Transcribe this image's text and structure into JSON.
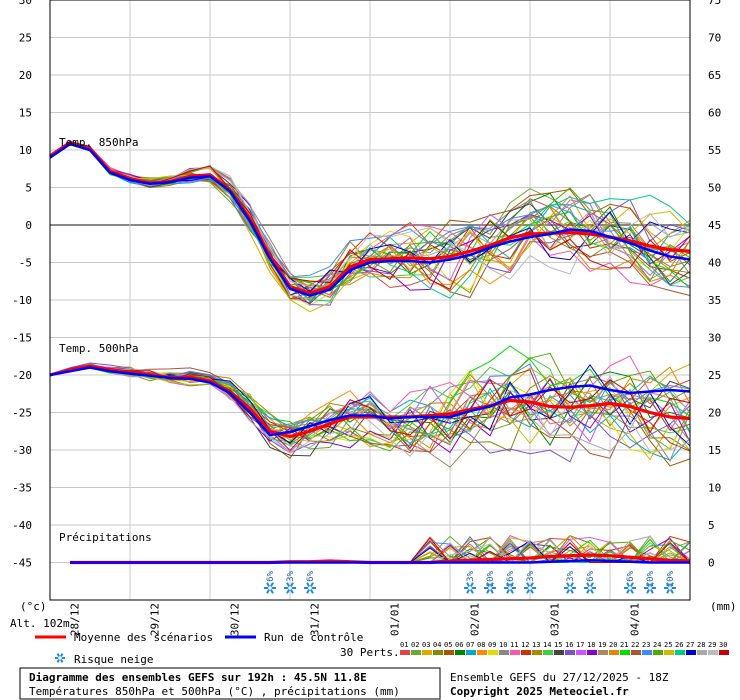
{
  "chart_data": {
    "type": "line",
    "x_dates": [
      "28/12",
      "29/12",
      "30/12",
      "31/12",
      "01/01",
      "02/01",
      "03/01",
      "04/01"
    ],
    "x_range_hours": [
      0,
      192
    ],
    "left_axis": {
      "unit_label": "(°c)",
      "ylim": [
        -50,
        30
      ],
      "ticks": [
        30,
        25,
        20,
        15,
        10,
        5,
        0,
        -5,
        -10,
        -15,
        -20,
        -25,
        -30,
        -35,
        -40,
        -45
      ]
    },
    "right_axis": {
      "unit_label": "(mm)",
      "ylim": [
        -5,
        75
      ],
      "ticks": [
        75,
        70,
        65,
        60,
        55,
        50,
        45,
        40,
        35,
        30,
        25,
        20,
        15,
        10,
        5,
        0
      ]
    },
    "altitude_label": "Alt. 102m",
    "panels": [
      {
        "label": "Temp. 850hPa"
      },
      {
        "label": "Temp. 500hPa"
      },
      {
        "label": "Précipitations"
      }
    ],
    "series": [
      {
        "name": "Moyenne des scénarios",
        "color": "#ff0000",
        "panel": "t850",
        "x": [
          0,
          6,
          12,
          18,
          24,
          30,
          36,
          42,
          48,
          54,
          60,
          66,
          72,
          78,
          84,
          90,
          96,
          102,
          108,
          114,
          120,
          126,
          132,
          138,
          144,
          150,
          156,
          162,
          168,
          174,
          180,
          186,
          192
        ],
        "y": [
          9.2,
          11,
          10.2,
          7.2,
          6.2,
          5.6,
          5.8,
          6.5,
          6.7,
          4.7,
          0.8,
          -4.2,
          -8.2,
          -9.1,
          -8.2,
          -5.6,
          -4.6,
          -4.5,
          -4.4,
          -4.5,
          -4.2,
          -3.5,
          -2.7,
          -1.7,
          -1.2,
          -1.1,
          -1.0,
          -1.2,
          -1.6,
          -2.1,
          -2.8,
          -3.3,
          -3.5
        ]
      },
      {
        "name": "Run de contrôle",
        "color": "#0000ff",
        "panel": "t850",
        "x": [
          0,
          6,
          12,
          18,
          24,
          30,
          36,
          42,
          48,
          54,
          60,
          66,
          72,
          78,
          84,
          90,
          96,
          102,
          108,
          114,
          120,
          126,
          132,
          138,
          144,
          150,
          156,
          162,
          168,
          174,
          180,
          186,
          192
        ],
        "y": [
          9.0,
          10.8,
          10.0,
          7.0,
          6.0,
          5.5,
          5.7,
          6.3,
          6.5,
          4.5,
          0.5,
          -4.5,
          -8.5,
          -9.4,
          -8.6,
          -6.0,
          -5.0,
          -4.8,
          -4.8,
          -5.0,
          -4.6,
          -4.0,
          -3.0,
          -2.2,
          -1.6,
          -1.2,
          -0.6,
          -0.8,
          -1.6,
          -2.4,
          -3.4,
          -4.2,
          -4.6
        ]
      },
      {
        "name": "Moyenne des scénarios",
        "color": "#ff0000",
        "panel": "t500",
        "x": [
          0,
          6,
          12,
          18,
          24,
          30,
          36,
          42,
          48,
          54,
          60,
          66,
          72,
          78,
          84,
          90,
          96,
          102,
          108,
          114,
          120,
          126,
          132,
          138,
          144,
          150,
          156,
          162,
          168,
          174,
          180,
          186,
          192
        ],
        "y": [
          -20,
          -19.3,
          -18.8,
          -19.3,
          -19.6,
          -20,
          -20.3,
          -20.3,
          -20.8,
          -22.2,
          -24.5,
          -27.5,
          -28.2,
          -27.5,
          -26.5,
          -25.6,
          -25.6,
          -25.6,
          -25.6,
          -25.4,
          -25.2,
          -24.6,
          -24.1,
          -23.4,
          -23.6,
          -24.2,
          -24.3,
          -24.1,
          -23.8,
          -24.2,
          -25.0,
          -25.6,
          -25.8
        ]
      },
      {
        "name": "Run de contrôle",
        "color": "#0000ff",
        "panel": "t500",
        "x": [
          0,
          6,
          12,
          18,
          24,
          30,
          36,
          42,
          48,
          54,
          60,
          66,
          72,
          78,
          84,
          90,
          96,
          102,
          108,
          114,
          120,
          126,
          132,
          138,
          144,
          150,
          156,
          162,
          168,
          174,
          180,
          186,
          192
        ],
        "y": [
          -20,
          -19.5,
          -19.0,
          -19.5,
          -19.8,
          -20.1,
          -20.4,
          -20.5,
          -21.0,
          -22.4,
          -25.0,
          -28.0,
          -27.6,
          -26.8,
          -26.0,
          -25.4,
          -25.4,
          -25.8,
          -25.6,
          -25.6,
          -25.6,
          -24.8,
          -24.2,
          -23.0,
          -22.6,
          -22.0,
          -21.6,
          -21.4,
          -22.0,
          -22.4,
          -22.2,
          -22.0,
          -22.2
        ]
      },
      {
        "name": "Moyenne des scénarios",
        "color": "#ff0000",
        "panel": "precip",
        "x": [
          6,
          48,
          54,
          60,
          66,
          72,
          78,
          84,
          90,
          96,
          102,
          108,
          114,
          120,
          126,
          132,
          138,
          144,
          150,
          156,
          162,
          168,
          174,
          180,
          186,
          192
        ],
        "y": [
          0,
          0,
          0,
          0,
          0,
          0.1,
          0.1,
          0.2,
          0.1,
          0,
          0,
          0,
          0,
          0.2,
          0.3,
          0.4,
          0.5,
          0.6,
          0.8,
          0.9,
          1.0,
          0.9,
          0.7,
          0.5,
          0.3,
          0.2
        ]
      },
      {
        "name": "Run de contrôle",
        "color": "#0000ff",
        "panel": "precip",
        "x": [
          6,
          48,
          54,
          60,
          66,
          72,
          78,
          84,
          90,
          96,
          102,
          108,
          114,
          120,
          126,
          132,
          138,
          144,
          150,
          156,
          162,
          168,
          174,
          180,
          186,
          192
        ],
        "y": [
          0,
          0,
          0,
          0,
          0,
          0,
          0,
          0,
          0,
          0,
          0,
          0,
          0,
          0,
          0,
          0,
          0,
          0,
          0.1,
          0.2,
          0.3,
          0.2,
          0.1,
          0,
          0,
          0
        ]
      }
    ],
    "snow_risk": [
      {
        "hour": 66,
        "label": "6%"
      },
      {
        "hour": 72,
        "label": "3%"
      },
      {
        "hour": 78,
        "label": "6%"
      },
      {
        "hour": 126,
        "label": "3%"
      },
      {
        "hour": 132,
        "label": "10%"
      },
      {
        "hour": 138,
        "label": "16%"
      },
      {
        "hour": 144,
        "label": "3%"
      },
      {
        "hour": 156,
        "label": "3%"
      },
      {
        "hour": 162,
        "label": "6%"
      },
      {
        "hour": 174,
        "label": "6%"
      },
      {
        "hour": 180,
        "label": "10%"
      },
      {
        "hour": 186,
        "label": "10%"
      }
    ],
    "perturbation_count_label": "30 Perts.",
    "perturbations": [
      "01",
      "02",
      "03",
      "04",
      "05",
      "06",
      "07",
      "08",
      "09",
      "10",
      "11",
      "12",
      "13",
      "14",
      "15",
      "16",
      "17",
      "18",
      "19",
      "20",
      "21",
      "22",
      "23",
      "24",
      "25",
      "26",
      "27",
      "28",
      "29",
      "30"
    ],
    "perturbation_colors": [
      "#dd4444",
      "#66aa33",
      "#ddaa00",
      "#888800",
      "#aa5500",
      "#008800",
      "#00aacc",
      "#ff8800",
      "#dddd00",
      "#888888",
      "#ff55aa",
      "#cc3300",
      "#aa8800",
      "#44cc44",
      "#444444",
      "#7755cc",
      "#cc55ff",
      "#8800cc",
      "#aa8866",
      "#dd8800",
      "#00dd00",
      "#aa5533",
      "#4488ff",
      "#55aa00",
      "#ccbb00",
      "#00cc88",
      "#0000cc",
      "#aaaaaa",
      "#bbbbbb",
      "#cc0000"
    ]
  },
  "legend": {
    "mean": "Moyenne des scénarios",
    "control": "Run de contrôle",
    "snow": "Risque neige"
  },
  "footer": {
    "title": "Diagramme des ensembles GEFS sur 192h : 45.5N 11.8E",
    "subtitle": "Températures 850hPa et 500hPa (°C) , précipitations (mm)",
    "run": "Ensemble GEFS du 27/12/2025 - 18Z",
    "copyright": "Copyright 2025 Meteociel.fr"
  }
}
